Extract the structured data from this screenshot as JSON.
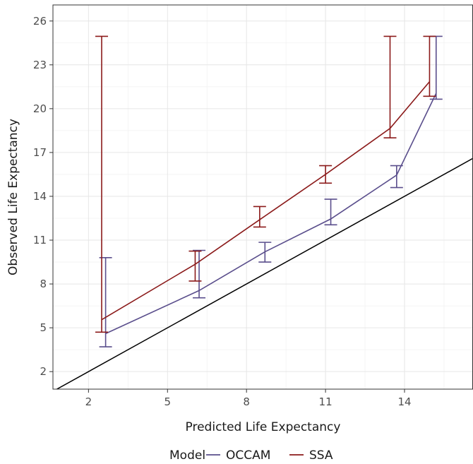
{
  "chart_data": {
    "type": "line",
    "xlabel": "Predicted Life Expectancy",
    "ylabel": "Observed Life Expectancy",
    "xlim": [
      0.65,
      16.6
    ],
    "ylim": [
      0.8,
      27.1
    ],
    "xticks": [
      2,
      5,
      8,
      11,
      14
    ],
    "yticks": [
      2,
      5,
      8,
      11,
      14,
      17,
      20,
      23,
      26
    ],
    "grid": true,
    "legend": {
      "title": "Model",
      "position": "bottom"
    },
    "reference_line": {
      "type": "identity",
      "color": "#000000"
    },
    "series": [
      {
        "name": "OCCAM",
        "color": "#5a4e8c",
        "points": [
          {
            "x": 2.65,
            "y": 4.6,
            "ymin": 3.7,
            "ymax": 9.8
          },
          {
            "x": 6.2,
            "y": 7.55,
            "ymin": 7.05,
            "ymax": 10.3
          },
          {
            "x": 8.7,
            "y": 10.2,
            "ymin": 9.5,
            "ymax": 10.85
          },
          {
            "x": 11.2,
            "y": 12.45,
            "ymin": 12.05,
            "ymax": 13.8
          },
          {
            "x": 13.7,
            "y": 15.45,
            "ymin": 14.6,
            "ymax": 16.1
          },
          {
            "x": 15.2,
            "y": 21.05,
            "ymin": 20.65,
            "ymax": 24.95
          }
        ]
      },
      {
        "name": "SSA",
        "color": "#8b1a1a",
        "points": [
          {
            "x": 2.5,
            "y": 5.55,
            "ymin": 4.7,
            "ymax": 24.95
          },
          {
            "x": 6.05,
            "y": 9.35,
            "ymin": 8.2,
            "ymax": 10.25
          },
          {
            "x": 8.5,
            "y": 12.4,
            "ymin": 11.9,
            "ymax": 13.3
          },
          {
            "x": 11.0,
            "y": 15.5,
            "ymin": 14.9,
            "ymax": 16.1
          },
          {
            "x": 13.45,
            "y": 18.65,
            "ymin": 18.0,
            "ymax": 24.95
          },
          {
            "x": 14.95,
            "y": 21.85,
            "ymin": 20.85,
            "ymax": 24.95
          }
        ]
      }
    ]
  }
}
